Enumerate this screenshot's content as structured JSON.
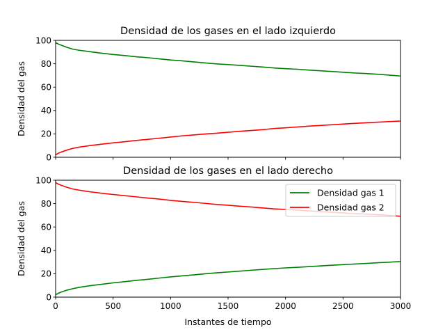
{
  "chart_data": [
    {
      "type": "line",
      "title": "Densidad de los gases en el lado izquierdo",
      "xlabel": "",
      "ylabel": "Densidad del gas",
      "xlim": [
        0,
        3000
      ],
      "ylim": [
        0,
        100
      ],
      "xticks": [
        0,
        500,
        1000,
        1500,
        2000,
        2500,
        3000
      ],
      "yticks": [
        0,
        20,
        40,
        60,
        80,
        100
      ],
      "show_xtick_labels": false,
      "grid": false,
      "legend": null,
      "series": [
        {
          "color": "#008000",
          "x": [
            0,
            25,
            50,
            100,
            150,
            200,
            300,
            400,
            500,
            600,
            700,
            800,
            900,
            1000,
            1100,
            1200,
            1300,
            1400,
            1500,
            1600,
            1700,
            1800,
            1900,
            2000,
            2100,
            2200,
            2300,
            2400,
            2500,
            2600,
            2700,
            2800,
            2900,
            3000
          ],
          "y": [
            98,
            96.8,
            95.8,
            94,
            92.5,
            91.6,
            90.3,
            89,
            87.9,
            87,
            86,
            85.2,
            84.2,
            83.2,
            82.5,
            81.6,
            80.7,
            79.9,
            79.3,
            78.6,
            77.9,
            77.2,
            76.4,
            75.8,
            75.3,
            74.6,
            74,
            73.4,
            72.7,
            72.1,
            71.6,
            71,
            70.3,
            69.5
          ]
        },
        {
          "color": "#ff0000",
          "x": [
            0,
            25,
            50,
            100,
            150,
            200,
            300,
            400,
            500,
            600,
            700,
            800,
            900,
            1000,
            1100,
            1200,
            1300,
            1400,
            1500,
            1600,
            1700,
            1800,
            1900,
            2000,
            2100,
            2200,
            2300,
            2400,
            2500,
            2600,
            2700,
            2800,
            2900,
            3000
          ],
          "y": [
            2,
            3.5,
            4.5,
            6.2,
            7.6,
            8.6,
            10,
            11.2,
            12.3,
            13.3,
            14.4,
            15.3,
            16.3,
            17.3,
            18.3,
            19.1,
            19.9,
            20.6,
            21.4,
            22.2,
            22.9,
            23.6,
            24.6,
            25.2,
            25.9,
            26.6,
            27.2,
            27.8,
            28.4,
            29,
            29.5,
            30,
            30.5,
            31
          ]
        }
      ]
    },
    {
      "type": "line",
      "title": "Densidad de los gases en el lado derecho",
      "xlabel": "Instantes de tiempo",
      "ylabel": "Densidad del gas",
      "xlim": [
        0,
        3000
      ],
      "ylim": [
        0,
        100
      ],
      "xticks": [
        0,
        500,
        1000,
        1500,
        2000,
        2500,
        3000
      ],
      "yticks": [
        0,
        20,
        40,
        60,
        80,
        100
      ],
      "show_xtick_labels": true,
      "grid": false,
      "legend": "top-right",
      "series": [
        {
          "name": "Densidad gas 1",
          "color": "#008000",
          "x": [
            0,
            25,
            50,
            100,
            150,
            200,
            300,
            400,
            500,
            600,
            700,
            800,
            900,
            1000,
            1100,
            1200,
            1300,
            1400,
            1500,
            1600,
            1700,
            1800,
            1900,
            2000,
            2100,
            2200,
            2300,
            2400,
            2500,
            2600,
            2700,
            2800,
            2900,
            3000
          ],
          "y": [
            2,
            3.4,
            4.4,
            6,
            7.2,
            8.3,
            9.8,
            11,
            12.2,
            13.2,
            14.3,
            15.2,
            16.3,
            17.3,
            18.2,
            19,
            20,
            20.8,
            21.5,
            22.2,
            23,
            23.7,
            24.4,
            25,
            25.5,
            26.1,
            26.7,
            27.3,
            27.8,
            28.3,
            28.8,
            29.4,
            29.9,
            30.5
          ]
        },
        {
          "name": "Densidad gas 2",
          "color": "#ff0000",
          "x": [
            0,
            25,
            50,
            100,
            150,
            200,
            300,
            400,
            500,
            600,
            700,
            800,
            900,
            1000,
            1100,
            1200,
            1300,
            1400,
            1500,
            1600,
            1700,
            1800,
            1900,
            2000,
            2100,
            2200,
            2300,
            2400,
            2500,
            2600,
            2700,
            2800,
            2900,
            3000
          ],
          "y": [
            98,
            96.6,
            95.6,
            93.9,
            92.5,
            91.6,
            90.1,
            88.9,
            87.8,
            86.8,
            85.8,
            84.8,
            83.9,
            82.8,
            81.9,
            81.1,
            80.2,
            79.3,
            78.6,
            77.8,
            77.1,
            76.3,
            75.5,
            75,
            74.4,
            73.8,
            73.2,
            72.6,
            72,
            71.4,
            71,
            70.5,
            69.9,
            69.2
          ]
        }
      ]
    }
  ]
}
